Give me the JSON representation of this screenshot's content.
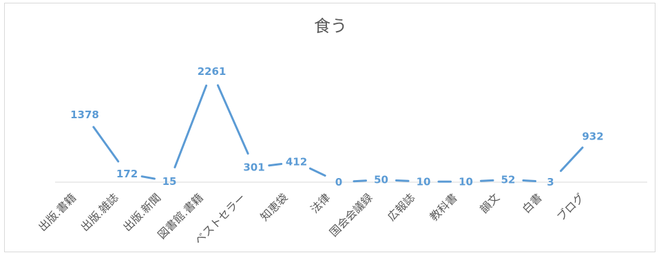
{
  "chart_data": {
    "type": "line",
    "title": "食う",
    "xlabel": "",
    "ylabel": "",
    "categories": [
      "出版.書籍",
      "出版.雑誌",
      "出版.新聞",
      "図書館.書籍",
      "ベストセラー",
      "知恵袋",
      "法律",
      "国会会議録",
      "広報誌",
      "教科書",
      "韻文",
      "白書",
      "ブログ"
    ],
    "series": [
      {
        "values": [
          1378,
          172,
          15,
          2261,
          301,
          412,
          0,
          50,
          10,
          10,
          52,
          3,
          932
        ]
      }
    ],
    "ylim": [
      0,
      2400
    ],
    "grid": false,
    "legend": "none",
    "data_labels": true,
    "colors": {
      "line": "#5b9bd5",
      "axis": "#d9d9d9",
      "text": "#595959"
    }
  }
}
